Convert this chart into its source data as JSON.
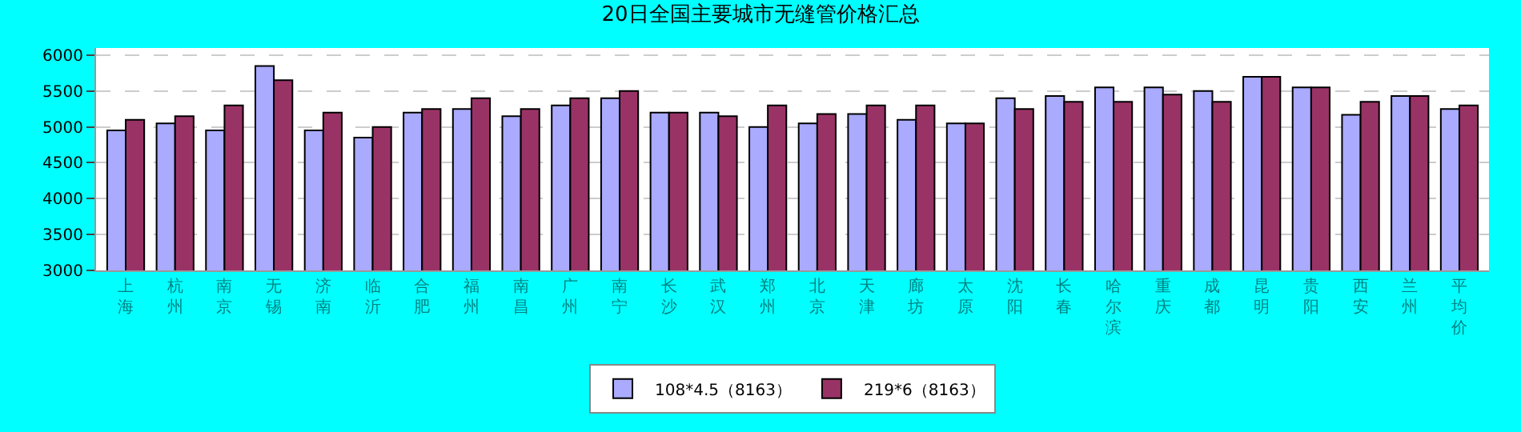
{
  "chart_data": {
    "type": "bar",
    "title": "20日全国主要城市无缝管价格汇总",
    "categories": [
      "上海",
      "杭州",
      "南京",
      "无锡",
      "济南",
      "临沂",
      "合肥",
      "福州",
      "南昌",
      "广州",
      "南宁",
      "长沙",
      "武汉",
      "郑州",
      "北京",
      "天津",
      "廊坊",
      "太原",
      "沈阳",
      "长春",
      "哈尔滨",
      "重庆",
      "成都",
      "昆明",
      "贵阳",
      "西安",
      "兰州",
      "平均价"
    ],
    "series": [
      {
        "name": "108*4.5（8163）",
        "color": "#aaaaff",
        "values": [
          4950,
          5050,
          4950,
          5850,
          4950,
          4850,
          5200,
          5250,
          5150,
          5300,
          5400,
          5200,
          5200,
          5000,
          5050,
          5180,
          5100,
          5050,
          5400,
          5430,
          5550,
          5550,
          5500,
          5700,
          5550,
          5170,
          5430,
          5250
        ]
      },
      {
        "name": "219*6（8163）",
        "color": "#993366",
        "values": [
          5100,
          5150,
          5300,
          5650,
          5200,
          5000,
          5250,
          5400,
          5250,
          5400,
          5500,
          5200,
          5150,
          5300,
          5180,
          5300,
          5300,
          5050,
          5250,
          5350,
          5350,
          5450,
          5350,
          5700,
          5550,
          5350,
          5430,
          5300
        ]
      }
    ],
    "ylim": [
      3000,
      6100
    ],
    "yticks": [
      3000,
      3500,
      4000,
      4500,
      5000,
      5500,
      6000
    ],
    "grid": "y",
    "legend": "bottom"
  }
}
